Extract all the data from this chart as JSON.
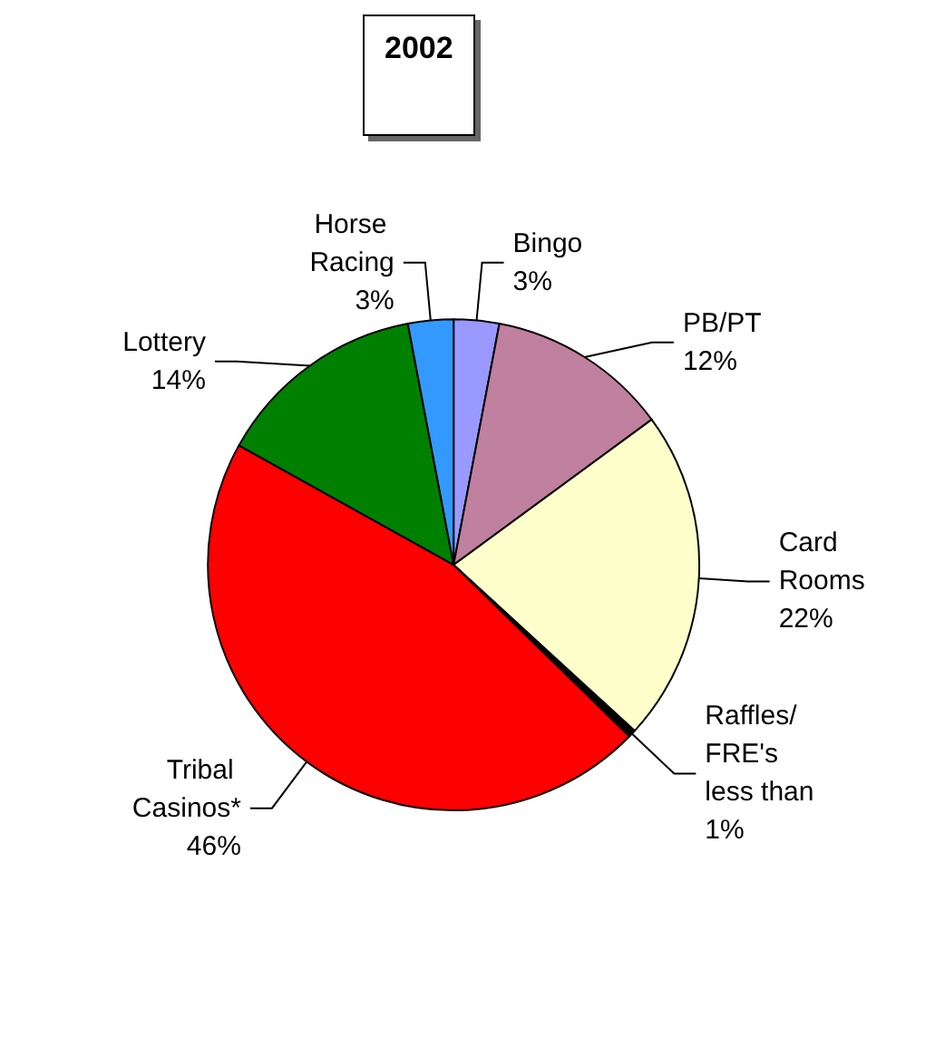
{
  "chart_data": {
    "type": "pie",
    "title": "2002",
    "categories": [
      "Bingo",
      "PB/PT",
      "Card Rooms",
      "Raffles/FRE's",
      "Tribal Casinos*",
      "Lottery",
      "Horse Racing"
    ],
    "values": [
      3,
      12,
      22,
      0.5,
      46,
      14,
      3
    ],
    "value_labels": [
      "3%",
      "12%",
      "22%",
      "less than 1%",
      "46%",
      "14%",
      "3%"
    ],
    "colors": [
      "#9999ff",
      "#c080a0",
      "#ffffcc",
      "#000000",
      "#ff0000",
      "#008000",
      "#3399ff"
    ],
    "legend": false
  }
}
